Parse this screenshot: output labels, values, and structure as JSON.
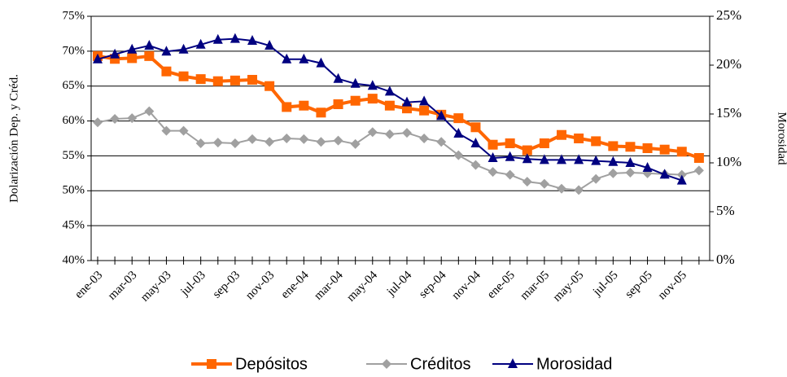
{
  "chart_data": {
    "type": "line",
    "y_label": "Dolarización Dep. y Créd.",
    "y2_label": "Morosidad",
    "categories": [
      "ene-03",
      null,
      "mar-03",
      null,
      "may-03",
      null,
      "jul-03",
      null,
      "sep-03",
      null,
      "nov-03",
      null,
      "ene-04",
      null,
      "mar-04",
      null,
      "may-04",
      null,
      "jul-04",
      null,
      "sep-04",
      null,
      "nov-04",
      null,
      "ene-05",
      null,
      "mar-05",
      null,
      "may-05",
      null,
      "jul-05",
      null,
      "sep-05",
      null,
      "nov-05",
      null
    ],
    "series": [
      {
        "name": "Depósitos",
        "color": "#ff6600",
        "marker": "square",
        "values": [
          69.3,
          68.9,
          69.0,
          69.3,
          67.1,
          66.4,
          66.0,
          65.7,
          65.8,
          65.9,
          65.0,
          62.0,
          62.2,
          61.2,
          62.4,
          62.9,
          63.2,
          62.2,
          61.8,
          61.5,
          60.9,
          60.4,
          59.1,
          56.6,
          56.8,
          55.8,
          56.8,
          58.0,
          57.5,
          57.1,
          56.4,
          56.3,
          56.1,
          55.9,
          55.6,
          54.7
        ]
      },
      {
        "name": "Créditos",
        "color": "#a0a0a0",
        "marker": "diamond",
        "values": [
          59.8,
          60.3,
          60.4,
          61.4,
          58.6,
          58.6,
          56.8,
          56.9,
          56.8,
          57.4,
          57.0,
          57.5,
          57.4,
          57.0,
          57.2,
          56.7,
          58.4,
          58.1,
          58.3,
          57.5,
          57.0,
          55.1,
          53.7,
          52.7,
          52.3,
          51.3,
          51.0,
          50.3,
          50.1,
          51.7,
          52.5,
          52.6,
          52.5,
          52.4,
          52.3,
          52.9
        ]
      },
      {
        "name": "Morosidad",
        "color": "#000080",
        "marker": "triangle",
        "axis": "y2",
        "values": [
          20.6,
          21.1,
          21.6,
          22.0,
          21.4,
          21.6,
          22.1,
          22.6,
          22.7,
          22.5,
          22.0,
          20.6,
          20.6,
          20.2,
          18.6,
          18.1,
          17.9,
          17.3,
          16.2,
          16.3,
          14.8,
          13.0,
          12.0,
          10.5,
          10.6,
          10.4,
          10.3,
          10.3,
          10.3,
          10.2,
          10.1,
          10.0,
          9.5,
          8.8,
          8.2,
          null
        ]
      }
    ],
    "ylim": [
      40,
      75
    ],
    "yticks": [
      {
        "value": 40,
        "label": "40%"
      },
      {
        "value": 45,
        "label": "45%"
      },
      {
        "value": 50,
        "label": "50%"
      },
      {
        "value": 55,
        "label": "55%"
      },
      {
        "value": 60,
        "label": "60%"
      },
      {
        "value": 65,
        "label": "65%"
      },
      {
        "value": 70,
        "label": "70%"
      },
      {
        "value": 75,
        "label": "75%"
      }
    ],
    "y2lim": [
      0,
      25
    ],
    "y2ticks": [
      {
        "value": 0,
        "label": "0%"
      },
      {
        "value": 5,
        "label": "5%"
      },
      {
        "value": 10,
        "label": "10%"
      },
      {
        "value": 15,
        "label": "15%"
      },
      {
        "value": 20,
        "label": "20%"
      },
      {
        "value": 25,
        "label": "25%"
      }
    ],
    "grid": true,
    "legend": "bottom"
  }
}
